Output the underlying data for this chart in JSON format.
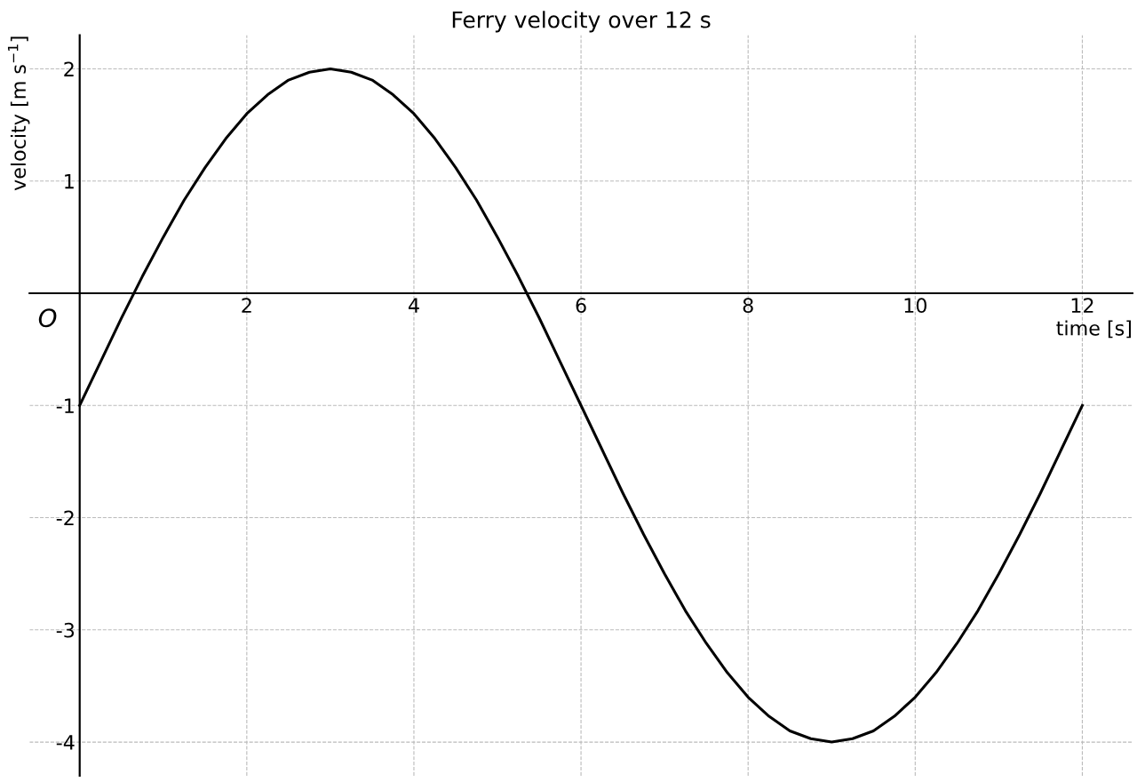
{
  "chart_data": {
    "type": "line",
    "title": "Ferry velocity over 12 s",
    "xlabel": "time [s]",
    "ylabel": "velocity [m s$^{−1}$]",
    "annotations": [
      "O"
    ],
    "x": [
      0,
      0.25,
      0.5,
      0.75,
      1,
      1.25,
      1.5,
      1.75,
      2,
      2.25,
      2.5,
      2.75,
      3,
      3.25,
      3.5,
      3.75,
      4,
      4.25,
      4.5,
      4.75,
      5,
      5.25,
      5.5,
      5.75,
      6,
      6.25,
      6.5,
      6.75,
      7,
      7.25,
      7.5,
      7.75,
      8,
      8.25,
      8.5,
      8.75,
      9,
      9.25,
      9.5,
      9.75,
      10,
      10.25,
      10.5,
      10.75,
      11,
      11.25,
      11.5,
      11.75,
      12
    ],
    "series": [
      {
        "color": "#000000",
        "values": [
          -1,
          -0.61,
          -0.22,
          0.15,
          0.5,
          0.83,
          1.12,
          1.38,
          1.6,
          1.77,
          1.9,
          1.97,
          2,
          1.97,
          1.9,
          1.77,
          1.6,
          1.38,
          1.12,
          0.83,
          0.5,
          0.15,
          -0.22,
          -0.61,
          -1,
          -1.39,
          -1.78,
          -2.15,
          -2.5,
          -2.83,
          -3.12,
          -3.38,
          -3.6,
          -3.77,
          -3.9,
          -3.97,
          -4,
          -3.97,
          -3.9,
          -3.77,
          -3.6,
          -3.38,
          -3.12,
          -2.83,
          -2.5,
          -2.15,
          -1.78,
          -1.39,
          -1
        ]
      }
    ],
    "xlim": [
      -0.6,
      12.6
    ],
    "ylim": [
      -4.3,
      2.3
    ],
    "xticks": [
      2,
      4,
      6,
      8,
      10,
      12
    ],
    "yticks": [
      {
        "value": -4,
        "label": "-4"
      },
      {
        "value": -3,
        "label": "-3"
      },
      {
        "value": -2,
        "label": "-2"
      },
      {
        "value": -1,
        "label": "-1"
      },
      1,
      2
    ],
    "grid": true,
    "line_style": "solid",
    "marker": "none"
  }
}
